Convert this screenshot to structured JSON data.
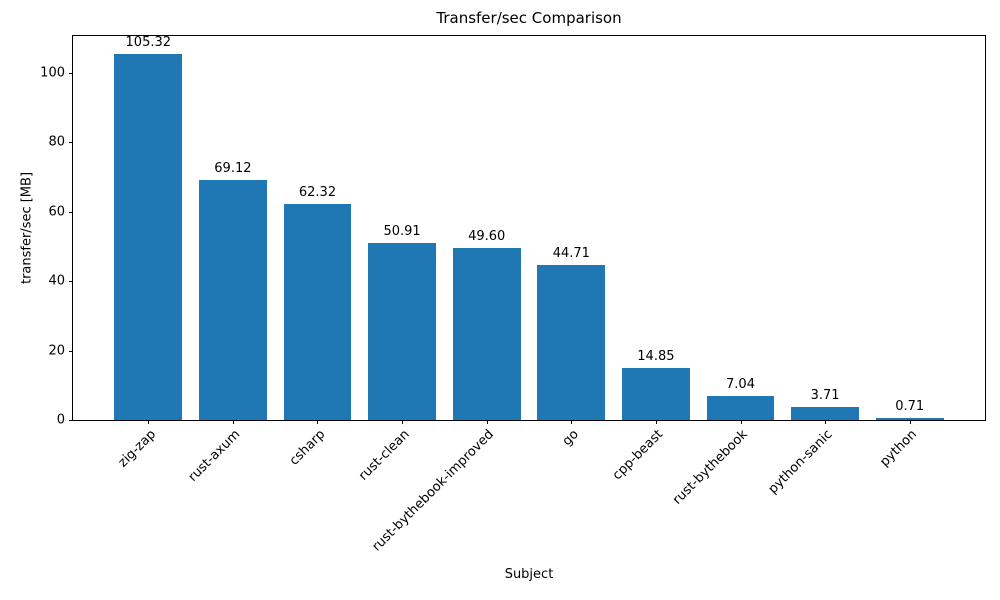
{
  "chart_data": {
    "type": "bar",
    "title": "Transfer/sec Comparison",
    "xlabel": "Subject",
    "ylabel": "transfer/sec [MB]",
    "categories": [
      "zig-zap",
      "rust-axum",
      "csharp",
      "rust-clean",
      "rust-bythebook-improved",
      "go",
      "cpp-beast",
      "rust-bythebook",
      "python-sanic",
      "python"
    ],
    "values": [
      105.32,
      69.12,
      62.32,
      50.91,
      49.6,
      44.71,
      14.85,
      7.04,
      3.71,
      0.71
    ],
    "value_labels": [
      "105.32",
      "69.12",
      "62.32",
      "50.91",
      "49.60",
      "44.71",
      "14.85",
      "7.04",
      "3.71",
      "0.71"
    ],
    "yticks": [
      0,
      20,
      40,
      60,
      80,
      100
    ],
    "ylim": [
      0,
      110.59
    ],
    "bar_color": "#1f77b4",
    "text_color": "#000000",
    "grid": false,
    "legend_position": "none"
  }
}
